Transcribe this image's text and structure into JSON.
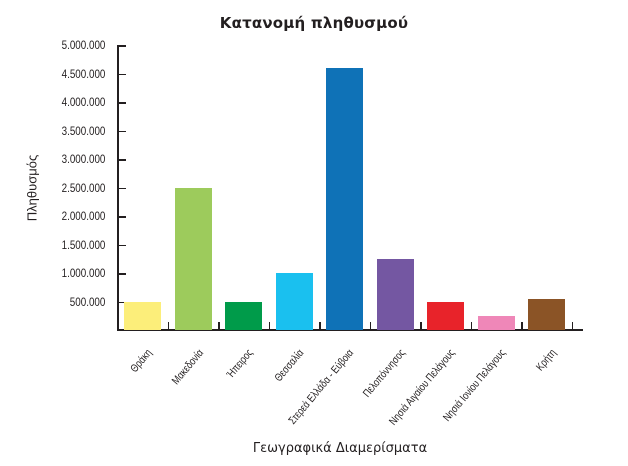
{
  "chart_data": {
    "type": "bar",
    "title": "Κατανομή πληθυσμού",
    "xlabel": "Γεωγραφικά Διαμερίσματα",
    "ylabel": "Πληθυσμός",
    "ylim": [
      0,
      5000000
    ],
    "yticks": [
      500000,
      1000000,
      1500000,
      2000000,
      2500000,
      3000000,
      3500000,
      4000000,
      4500000,
      5000000
    ],
    "ytick_labels": [
      "500.000",
      "1.000.000",
      "1.500.000",
      "2.000.000",
      "2.500.000",
      "3.000.000",
      "3.500.000",
      "4.000.000",
      "4.500.000",
      "5.000.000"
    ],
    "grid": false,
    "legend": "none",
    "categories": [
      "Θράκη",
      "Μακεδονία",
      "Ήπειρος",
      "Θεσσαλία",
      "Στερεά Ελλάδα - Εύβοια",
      "Πελοπόννησος",
      "Νησιά Αιγαίου Πελάγους",
      "Νησιά Ιονίου Πελάγους",
      "Κρήτη"
    ],
    "values": [
      500000,
      2500000,
      500000,
      1000000,
      4600000,
      1250000,
      500000,
      250000,
      550000
    ],
    "colors": [
      "#fcee7a",
      "#9dcb5c",
      "#009b4a",
      "#1ac0ef",
      "#0f72b7",
      "#7457a2",
      "#e8232a",
      "#ef87b8",
      "#8b5426"
    ]
  }
}
